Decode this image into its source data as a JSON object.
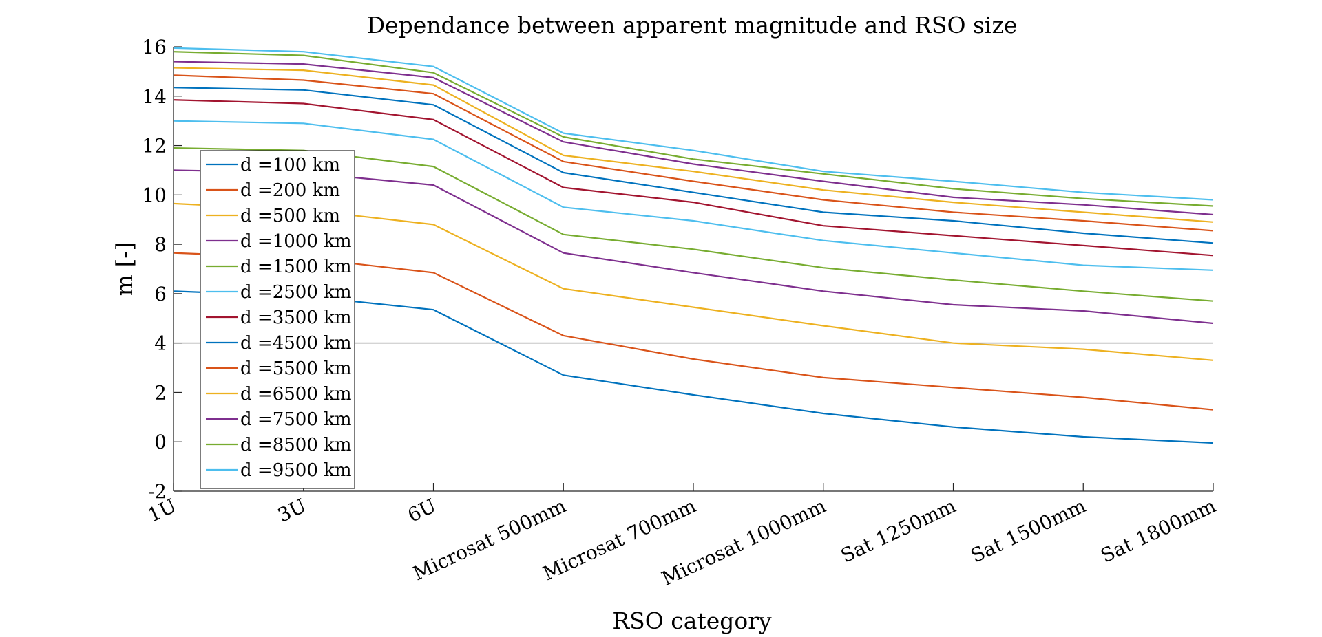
{
  "chart_data": {
    "type": "line",
    "title": "Dependance between apparent magnitude and RSO size",
    "xlabel": "RSO category",
    "ylabel": "m [-]",
    "ylim": [
      -2,
      16
    ],
    "yticks": [
      "-2",
      "0",
      "2",
      "4",
      "6",
      "8",
      "10",
      "12",
      "14",
      "16"
    ],
    "categories": [
      "1U",
      "3U",
      "6U",
      "Microsat 500mm",
      "Microsat 700mm",
      "Microsat 1000mm",
      "Sat 1250mm",
      "Sat 1500mm",
      "Sat 1800mm"
    ],
    "reference_line": 4,
    "grid": false,
    "legend_position": "upper-left",
    "series": [
      {
        "name": "d =100 km",
        "color": "#0072BD",
        "values": [
          6.1,
          5.9,
          5.35,
          2.7,
          1.9,
          1.15,
          0.6,
          0.2,
          -0.05
        ]
      },
      {
        "name": "d =200 km",
        "color": "#D95319",
        "values": [
          7.65,
          7.45,
          6.85,
          4.3,
          3.35,
          2.6,
          2.2,
          1.8,
          1.3
        ]
      },
      {
        "name": "d =500 km",
        "color": "#EDB120",
        "values": [
          9.65,
          9.4,
          8.8,
          6.2,
          5.45,
          4.7,
          4.0,
          3.75,
          3.3
        ]
      },
      {
        "name": "d =1000 km",
        "color": "#7E2F8E",
        "values": [
          11.0,
          10.9,
          10.4,
          7.65,
          6.85,
          6.1,
          5.55,
          5.3,
          4.8
        ]
      },
      {
        "name": "d =1500 km",
        "color": "#77AC30",
        "values": [
          11.9,
          11.8,
          11.15,
          8.4,
          7.8,
          7.05,
          6.55,
          6.1,
          5.7
        ]
      },
      {
        "name": "d =2500 km",
        "color": "#4DBEEE",
        "values": [
          13.0,
          12.9,
          12.25,
          9.5,
          8.95,
          8.15,
          7.65,
          7.15,
          6.95
        ]
      },
      {
        "name": "d =3500 km",
        "color": "#A2142F",
        "values": [
          13.85,
          13.7,
          13.05,
          10.3,
          9.7,
          8.75,
          8.35,
          7.95,
          7.55
        ]
      },
      {
        "name": "d =4500 km",
        "color": "#0072BD",
        "values": [
          14.35,
          14.25,
          13.65,
          10.9,
          10.1,
          9.3,
          8.95,
          8.45,
          8.05
        ]
      },
      {
        "name": "d =5500 km",
        "color": "#D95319",
        "values": [
          14.85,
          14.65,
          14.1,
          11.35,
          10.55,
          9.8,
          9.3,
          8.95,
          8.55
        ]
      },
      {
        "name": "d =6500 km",
        "color": "#EDB120",
        "values": [
          15.15,
          15.05,
          14.45,
          11.6,
          10.95,
          10.2,
          9.7,
          9.3,
          8.9
        ]
      },
      {
        "name": "d =7500 km",
        "color": "#7E2F8E",
        "values": [
          15.4,
          15.3,
          14.75,
          12.15,
          11.25,
          10.55,
          9.9,
          9.6,
          9.2
        ]
      },
      {
        "name": "d =8500 km",
        "color": "#77AC30",
        "values": [
          15.8,
          15.65,
          14.95,
          12.35,
          11.45,
          10.85,
          10.25,
          9.85,
          9.55
        ]
      },
      {
        "name": "d =9500 km",
        "color": "#4DBEEE",
        "values": [
          15.95,
          15.8,
          15.2,
          12.5,
          11.8,
          10.95,
          10.55,
          10.1,
          9.8
        ]
      }
    ]
  }
}
